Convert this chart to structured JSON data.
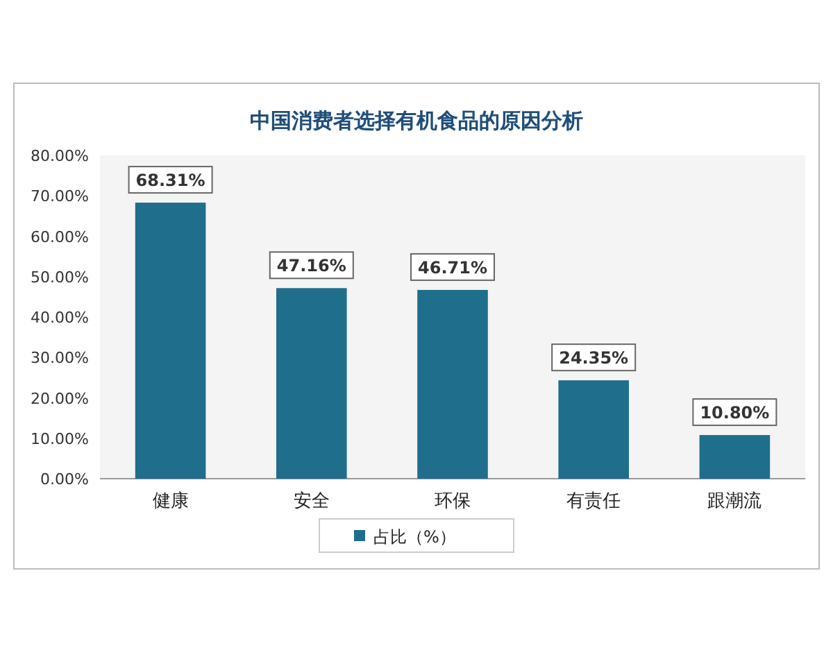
{
  "chart_data": {
    "type": "bar",
    "title": "中国消费者选择有机食品的原因分析",
    "categories": [
      "健康",
      "安全",
      "环保",
      "有责任",
      "跟潮流"
    ],
    "series": [
      {
        "name": "占比（%）",
        "color": "#1f6e8c",
        "values": [
          68.31,
          47.16,
          46.71,
          24.35,
          10.8
        ],
        "value_labels": [
          "68.31%",
          "47.16%",
          "46.71%",
          "24.35%",
          "10.80%"
        ]
      }
    ],
    "ylim": [
      0,
      80
    ],
    "yticks": [
      {
        "value": 0,
        "label": "0.00%"
      },
      {
        "value": 10,
        "label": "10.00%"
      },
      {
        "value": 20,
        "label": "20.00%"
      },
      {
        "value": 30,
        "label": "30.00%"
      },
      {
        "value": 40,
        "label": "40.00%"
      },
      {
        "value": 50,
        "label": "50.00%"
      },
      {
        "value": 60,
        "label": "60.00%"
      },
      {
        "value": 70,
        "label": "70.00%"
      },
      {
        "value": 80,
        "label": "80.00%"
      }
    ],
    "legend": "bottom"
  }
}
